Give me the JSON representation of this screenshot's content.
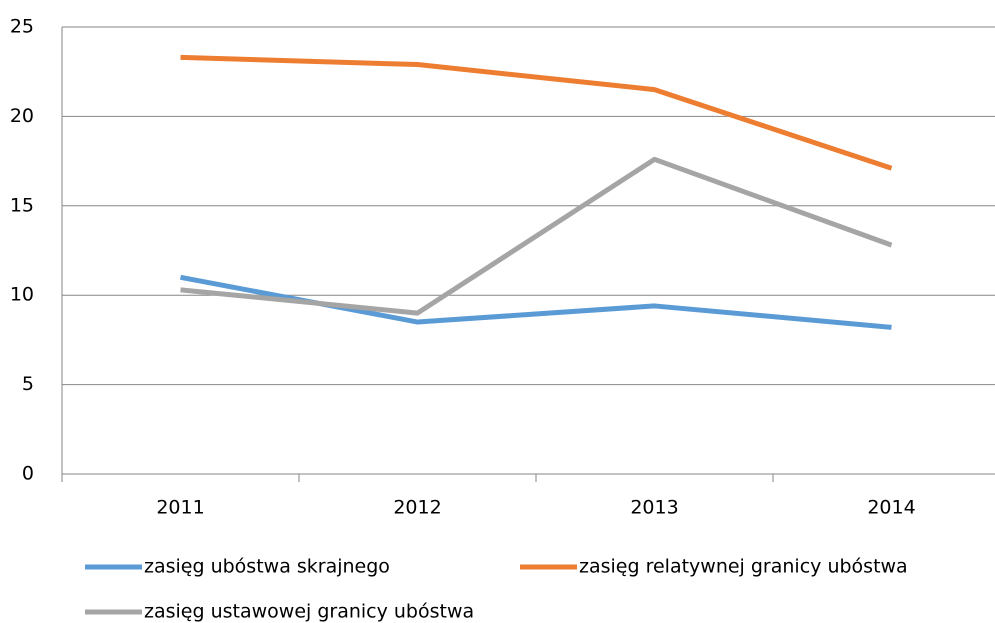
{
  "chart_data": {
    "type": "line",
    "categories": [
      "2011",
      "2012",
      "2013",
      "2014"
    ],
    "series": [
      {
        "name": "zasięg ubóstwa skrajnego",
        "color": "#5b9bd5",
        "values": [
          11.0,
          8.5,
          9.4,
          8.2
        ]
      },
      {
        "name": "zasięg relatywnej granicy ubóstwa",
        "color": "#ed7d31",
        "values": [
          23.3,
          22.9,
          21.5,
          17.1
        ]
      },
      {
        "name": "zasięg ustawowej granicy ubóstwa",
        "color": "#a5a5a5",
        "values": [
          10.3,
          9.0,
          17.6,
          12.8
        ]
      }
    ],
    "ylim": [
      0,
      25
    ],
    "yticks": [
      0,
      5,
      10,
      15,
      20,
      25
    ],
    "grid": true,
    "legend": "bottom"
  }
}
